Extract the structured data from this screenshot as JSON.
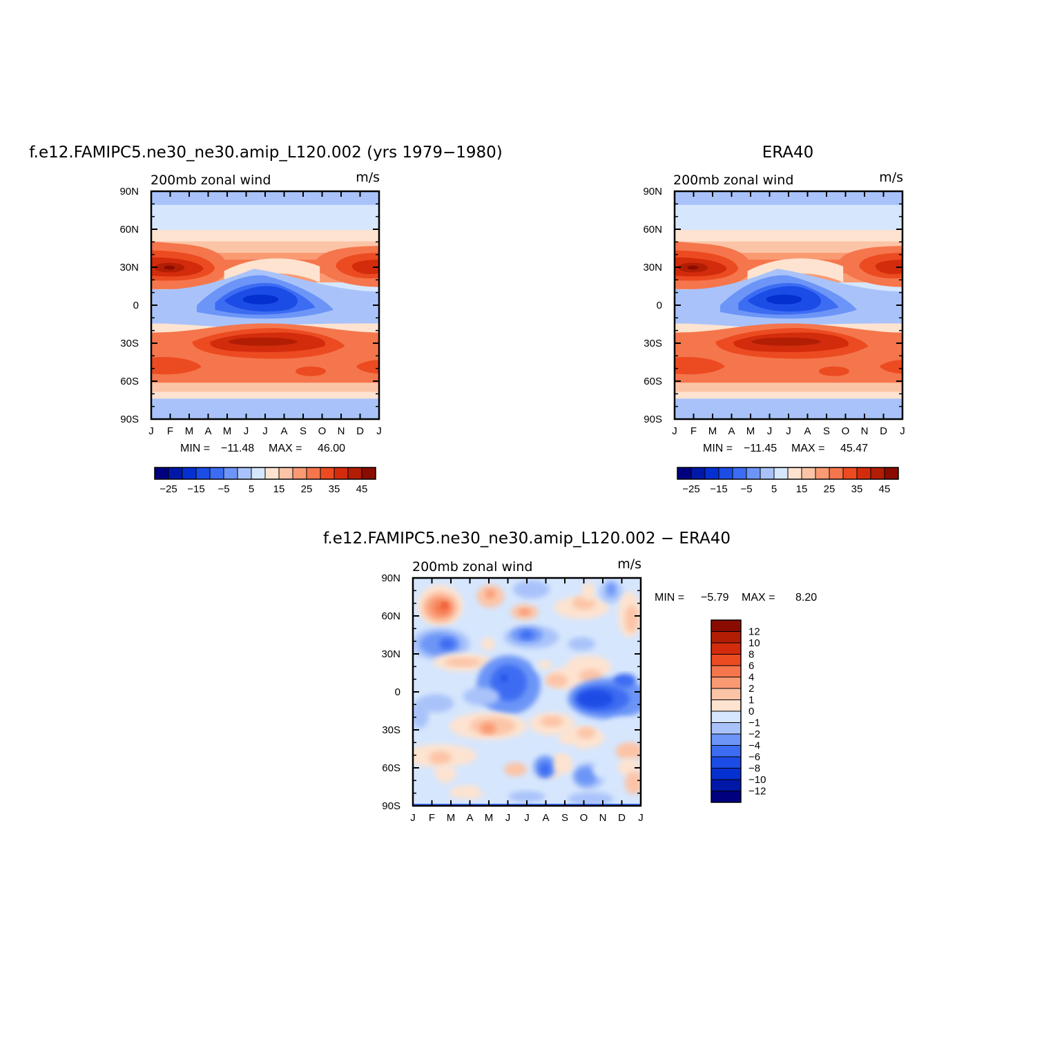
{
  "panels": [
    {
      "id": "model",
      "title": "f.e12.FAMIPC5.ne30_ne30.amip_L120.002 (yrs 1979−1980)",
      "left_label": "200mb zonal wind",
      "right_label": "m/s",
      "stats": {
        "min_label": "MIN =",
        "min": "−11.48",
        "max_label": "MAX =",
        "max": "46.00"
      },
      "levels": [
        -30,
        -25,
        -20,
        -15,
        -10,
        -5,
        0,
        5,
        10,
        15,
        20,
        25,
        30,
        35,
        40,
        45
      ],
      "colorbar_labels": [
        "−25",
        "−15",
        "−5",
        "5",
        "15",
        "25",
        "35",
        "45"
      ]
    },
    {
      "id": "obs",
      "title": "ERA40",
      "left_label": "200mb zonal wind",
      "right_label": "m/s",
      "stats": {
        "min_label": "MIN =",
        "min": "−11.45",
        "max_label": "MAX =",
        "max": "45.47"
      },
      "levels": [
        -30,
        -25,
        -20,
        -15,
        -10,
        -5,
        0,
        5,
        10,
        15,
        20,
        25,
        30,
        35,
        40,
        45
      ],
      "colorbar_labels": [
        "−25",
        "−15",
        "−5",
        "5",
        "15",
        "25",
        "35",
        "45"
      ]
    },
    {
      "id": "diff",
      "title": "f.e12.FAMIPC5.ne30_ne30.amip_L120.002 − ERA40",
      "left_label": "200mb zonal wind",
      "right_label": "m/s",
      "stats": {
        "min_label": "MIN =",
        "min": "−5.79",
        "max_label": "MAX =",
        "max": "8.20"
      },
      "levels": [
        -12,
        -10,
        -8,
        -6,
        -4,
        -2,
        -1,
        0,
        1,
        2,
        4,
        6,
        8,
        10,
        12
      ],
      "colorbar_labels": [
        "12",
        "10",
        "8",
        "6",
        "4",
        "2",
        "1",
        "0",
        "−1",
        "−2",
        "−4",
        "−6",
        "−8",
        "−10",
        "−12"
      ]
    }
  ],
  "colors": {
    "full": [
      "#00007f",
      "#0018a8",
      "#0530d0",
      "#1c4ce6",
      "#3c6cf2",
      "#6c95f7",
      "#a9c3fa",
      "#d6e6fd",
      "#fde3d0",
      "#fcc4a7",
      "#f99a73",
      "#f5764c",
      "#ec4b22",
      "#d32c0c",
      "#b11e04",
      "#8a0c00"
    ],
    "diff": [
      "#8a0c00",
      "#b11e04",
      "#d32c0c",
      "#ec4b22",
      "#f5764c",
      "#f99a73",
      "#fcc4a7",
      "#fde3d0",
      "#d6e6fd",
      "#a9c3fa",
      "#6c95f7",
      "#3c6cf2",
      "#1c4ce6",
      "#0530d0",
      "#0018a8",
      "#00007f"
    ]
  },
  "axes": {
    "x_ticks": [
      "J",
      "F",
      "M",
      "A",
      "M",
      "J",
      "J",
      "A",
      "S",
      "O",
      "N",
      "D",
      "J"
    ],
    "y_ticks": [
      "90N",
      "60N",
      "30N",
      "0",
      "30S",
      "60S",
      "90S"
    ]
  },
  "chart_data": [
    {
      "type": "heatmap",
      "title": "f.e12.FAMIPC5.ne30_ne30.amip_L120.002 (yrs 1979−1980)",
      "variable": "200mb zonal wind",
      "units": "m/s",
      "x": [
        "J",
        "F",
        "M",
        "A",
        "M",
        "J",
        "J",
        "A",
        "S",
        "O",
        "N",
        "D",
        "J"
      ],
      "y_range": [
        -90,
        90
      ],
      "min": -11.48,
      "max": 46.0,
      "features": [
        {
          "name": "NH subtropical jet",
          "lat": 30,
          "peak_month": "Jan",
          "value": 46
        },
        {
          "name": "SH subtropical jet",
          "lat": -30,
          "peak_month": "Jul",
          "value": 42
        },
        {
          "name": "Tropical easterlies",
          "lat": 5,
          "peak_month": "Jul",
          "value": -11
        }
      ]
    },
    {
      "type": "heatmap",
      "title": "ERA40",
      "variable": "200mb zonal wind",
      "units": "m/s",
      "x": [
        "J",
        "F",
        "M",
        "A",
        "M",
        "J",
        "J",
        "A",
        "S",
        "O",
        "N",
        "D",
        "J"
      ],
      "y_range": [
        -90,
        90
      ],
      "min": -11.45,
      "max": 45.47,
      "features": [
        {
          "name": "NH subtropical jet",
          "lat": 30,
          "peak_month": "Jan",
          "value": 45
        },
        {
          "name": "SH subtropical jet",
          "lat": -30,
          "peak_month": "Jul",
          "value": 41
        },
        {
          "name": "Tropical easterlies",
          "lat": 5,
          "peak_month": "Jul",
          "value": -11
        }
      ]
    },
    {
      "type": "heatmap",
      "title": "f.e12.FAMIPC5.ne30_ne30.amip_L120.002 − ERA40",
      "variable": "200mb zonal wind",
      "units": "m/s",
      "x": [
        "J",
        "F",
        "M",
        "A",
        "M",
        "J",
        "J",
        "A",
        "S",
        "O",
        "N",
        "D",
        "J"
      ],
      "y_range": [
        -90,
        90
      ],
      "min": -5.79,
      "max": 8.2
    }
  ]
}
